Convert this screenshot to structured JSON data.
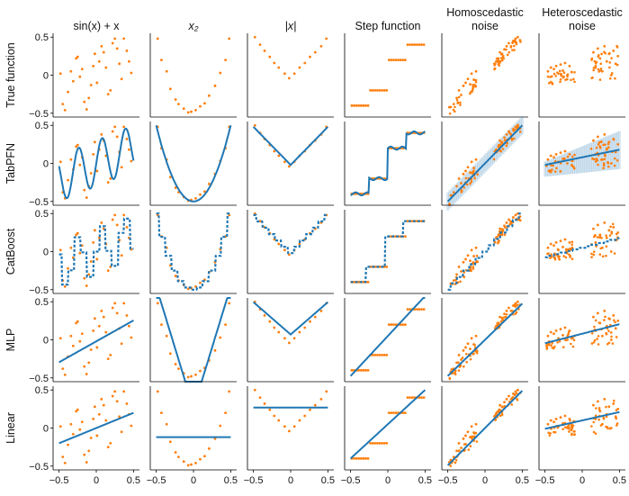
{
  "chart_data": {
    "type": "scatter",
    "title": "",
    "columns": [
      {
        "id": "sin",
        "title_lines": [
          "sin(x) + x"
        ]
      },
      {
        "id": "quad",
        "title_lines": [
          "x₂"
        ]
      },
      {
        "id": "abs",
        "title_lines": [
          "|x|"
        ]
      },
      {
        "id": "step",
        "title_lines": [
          "Step function"
        ]
      },
      {
        "id": "homo",
        "title_lines": [
          "Homoscedastic",
          "noise"
        ]
      },
      {
        "id": "hetero",
        "title_lines": [
          "Heteroscedastic",
          "noise"
        ]
      }
    ],
    "rows": [
      {
        "id": "true",
        "label": "True function"
      },
      {
        "id": "tabpfn",
        "label": "TabPFN"
      },
      {
        "id": "catboost",
        "label": "CatBoost"
      },
      {
        "id": "mlp",
        "label": "MLP"
      },
      {
        "id": "linear",
        "label": "Linear"
      }
    ],
    "xlim": [
      -0.58,
      0.58
    ],
    "ylim": [
      -0.55,
      0.55
    ],
    "x_ticks": [
      -0.5,
      0,
      0.5
    ],
    "x_tick_labels": [
      "−0.5",
      "0",
      "0.5"
    ],
    "y_ticks": [
      0.5,
      0,
      -0.5
    ],
    "y_tick_labels": [
      "0.5",
      "0",
      "−0.5"
    ],
    "series": [
      {
        "name": "training data",
        "color": "#ff7f0e",
        "marker": "dot"
      },
      {
        "name": "model prediction",
        "color": "#1f77b4",
        "marker": "line"
      }
    ],
    "train_points": {
      "sin": [
        [
          -0.48,
          0.02
        ],
        [
          -0.45,
          -0.38
        ],
        [
          -0.42,
          -0.46
        ],
        [
          -0.38,
          -0.22
        ],
        [
          -0.34,
          0.05
        ],
        [
          -0.31,
          -0.08
        ],
        [
          -0.27,
          0.22
        ],
        [
          -0.25,
          0.24
        ],
        [
          -0.22,
          -0.02
        ],
        [
          -0.19,
          0.08
        ],
        [
          -0.16,
          -0.35
        ],
        [
          -0.13,
          -0.45
        ],
        [
          -0.1,
          -0.3
        ],
        [
          -0.07,
          -0.13
        ],
        [
          -0.04,
          0.12
        ],
        [
          -0.02,
          0.28
        ],
        [
          0.01,
          -0.1
        ],
        [
          0.04,
          0.18
        ],
        [
          0.07,
          0.38
        ],
        [
          0.1,
          0.3
        ],
        [
          0.13,
          0.1
        ],
        [
          0.16,
          -0.25
        ],
        [
          0.19,
          -0.2
        ],
        [
          0.22,
          0.42
        ],
        [
          0.25,
          0.48
        ],
        [
          0.28,
          0.35
        ],
        [
          0.31,
          0.15
        ],
        [
          0.34,
          -0.05
        ],
        [
          0.37,
          0.48
        ],
        [
          0.41,
          0.32
        ],
        [
          0.44,
          0.18
        ],
        [
          0.47,
          0.03
        ]
      ],
      "quad": [
        [
          -0.48,
          0.48
        ],
        [
          -0.43,
          0.2
        ],
        [
          -0.36,
          0.05
        ],
        [
          -0.31,
          -0.18
        ],
        [
          -0.24,
          -0.32
        ],
        [
          -0.2,
          -0.38
        ],
        [
          -0.13,
          -0.44
        ],
        [
          -0.07,
          -0.49
        ],
        [
          -0.03,
          -0.48
        ],
        [
          0.03,
          -0.46
        ],
        [
          0.09,
          -0.41
        ],
        [
          0.15,
          -0.37
        ],
        [
          0.21,
          -0.27
        ],
        [
          0.29,
          -0.14
        ],
        [
          0.36,
          0.03
        ],
        [
          0.43,
          0.2
        ],
        [
          0.48,
          0.48
        ]
      ],
      "abs": [
        [
          -0.48,
          0.5
        ],
        [
          -0.41,
          0.4
        ],
        [
          -0.35,
          0.32
        ],
        [
          -0.28,
          0.24
        ],
        [
          -0.22,
          0.16
        ],
        [
          -0.16,
          0.1
        ],
        [
          -0.08,
          0.02
        ],
        [
          -0.02,
          -0.04
        ],
        [
          0.05,
          0.02
        ],
        [
          0.12,
          0.1
        ],
        [
          0.19,
          0.16
        ],
        [
          0.26,
          0.24
        ],
        [
          0.33,
          0.3
        ],
        [
          0.41,
          0.38
        ],
        [
          0.48,
          0.48
        ]
      ],
      "homo": [
        [
          -0.46,
          -0.42
        ],
        [
          -0.42,
          -0.38
        ],
        [
          -0.38,
          -0.3
        ],
        [
          -0.35,
          -0.2
        ],
        [
          -0.32,
          -0.26
        ],
        [
          -0.29,
          -0.14
        ],
        [
          -0.26,
          -0.1
        ],
        [
          -0.23,
          -0.05
        ],
        [
          -0.2,
          -0.12
        ],
        [
          -0.18,
          0.02
        ],
        [
          -0.15,
          -0.06
        ],
        [
          -0.12,
          0.05
        ],
        [
          0.15,
          0.18
        ],
        [
          0.18,
          0.22
        ],
        [
          0.2,
          0.3
        ],
        [
          0.23,
          0.28
        ],
        [
          0.26,
          0.34
        ],
        [
          0.29,
          0.38
        ],
        [
          0.32,
          0.42
        ],
        [
          0.35,
          0.38
        ],
        [
          0.38,
          0.45
        ],
        [
          0.41,
          0.48
        ],
        [
          0.44,
          0.5
        ],
        [
          0.47,
          0.46
        ]
      ],
      "hetero": [
        [
          -0.46,
          0.05
        ],
        [
          -0.42,
          0.1
        ],
        [
          -0.38,
          0.08
        ],
        [
          -0.35,
          0.12
        ],
        [
          -0.32,
          0.02
        ],
        [
          -0.29,
          0.14
        ],
        [
          -0.26,
          0.06
        ],
        [
          -0.23,
          0.16
        ],
        [
          -0.2,
          0.0
        ],
        [
          -0.17,
          0.12
        ],
        [
          -0.14,
          0.04
        ],
        [
          0.15,
          0.3
        ],
        [
          0.18,
          0.12
        ],
        [
          0.21,
          0.35
        ],
        [
          0.24,
          0.22
        ],
        [
          0.27,
          0.05
        ],
        [
          0.3,
          0.38
        ],
        [
          0.33,
          0.18
        ],
        [
          0.36,
          0.28
        ],
        [
          0.39,
          0.0
        ],
        [
          0.42,
          0.32
        ],
        [
          0.45,
          0.15
        ],
        [
          0.48,
          0.25
        ]
      ]
    },
    "step_function": {
      "levels": [
        [
          -0.5,
          -0.25,
          -0.4
        ],
        [
          -0.25,
          0.0,
          -0.2
        ],
        [
          0.0,
          0.25,
          0.2
        ],
        [
          0.25,
          0.5,
          0.4
        ]
      ]
    },
    "annotations": []
  }
}
